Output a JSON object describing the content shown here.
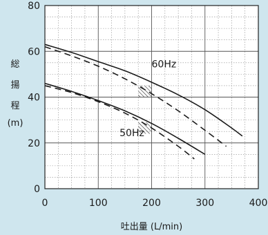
{
  "chart_data": {
    "type": "line",
    "title": "",
    "xlabel": "吐出量 (L/min)",
    "ylabel_chars": [
      "総",
      "揚",
      "程",
      "(m)"
    ],
    "xlim": [
      0,
      400
    ],
    "ylim": [
      0,
      80
    ],
    "x_ticks": [
      0,
      100,
      200,
      300,
      400
    ],
    "y_ticks": [
      0,
      20,
      40,
      60,
      80
    ],
    "grid": true,
    "background_color": "#cfe6ee",
    "plot_background_color": "#ffffff",
    "series": [
      {
        "name": "60Hz",
        "style": "solid",
        "color": "#1a1a1a",
        "x": [
          0,
          50,
          100,
          150,
          200,
          250,
          300,
          350,
          370
        ],
        "y": [
          63,
          59.5,
          55.5,
          51.5,
          46.5,
          41,
          34.5,
          26.5,
          23
        ]
      },
      {
        "name": "60Hz",
        "style": "dashed",
        "color": "#1a1a1a",
        "x": [
          0,
          50,
          100,
          150,
          200,
          250,
          300,
          340
        ],
        "y": [
          62,
          58,
          53.5,
          48,
          41.5,
          34,
          25.5,
          18.5
        ]
      },
      {
        "name": "50Hz",
        "style": "solid",
        "color": "#1a1a1a",
        "x": [
          0,
          50,
          100,
          150,
          200,
          250,
          300
        ],
        "y": [
          46,
          42.5,
          38.5,
          34,
          28.5,
          22,
          15
        ]
      },
      {
        "name": "50Hz",
        "style": "dashed",
        "color": "#1a1a1a",
        "x": [
          0,
          50,
          100,
          150,
          200,
          250,
          280
        ],
        "y": [
          45,
          42,
          38,
          33,
          26.5,
          18.5,
          13
        ]
      }
    ],
    "annotations": [
      {
        "text": "60Hz",
        "x": 200,
        "y": 53
      },
      {
        "text": "50Hz",
        "x": 140,
        "y": 23
      }
    ],
    "hatch_regions": [
      {
        "x": [
          175,
          200
        ],
        "y": [
          40,
          45
        ]
      },
      {
        "x": [
          175,
          200
        ],
        "y": [
          24,
          29
        ]
      }
    ]
  }
}
